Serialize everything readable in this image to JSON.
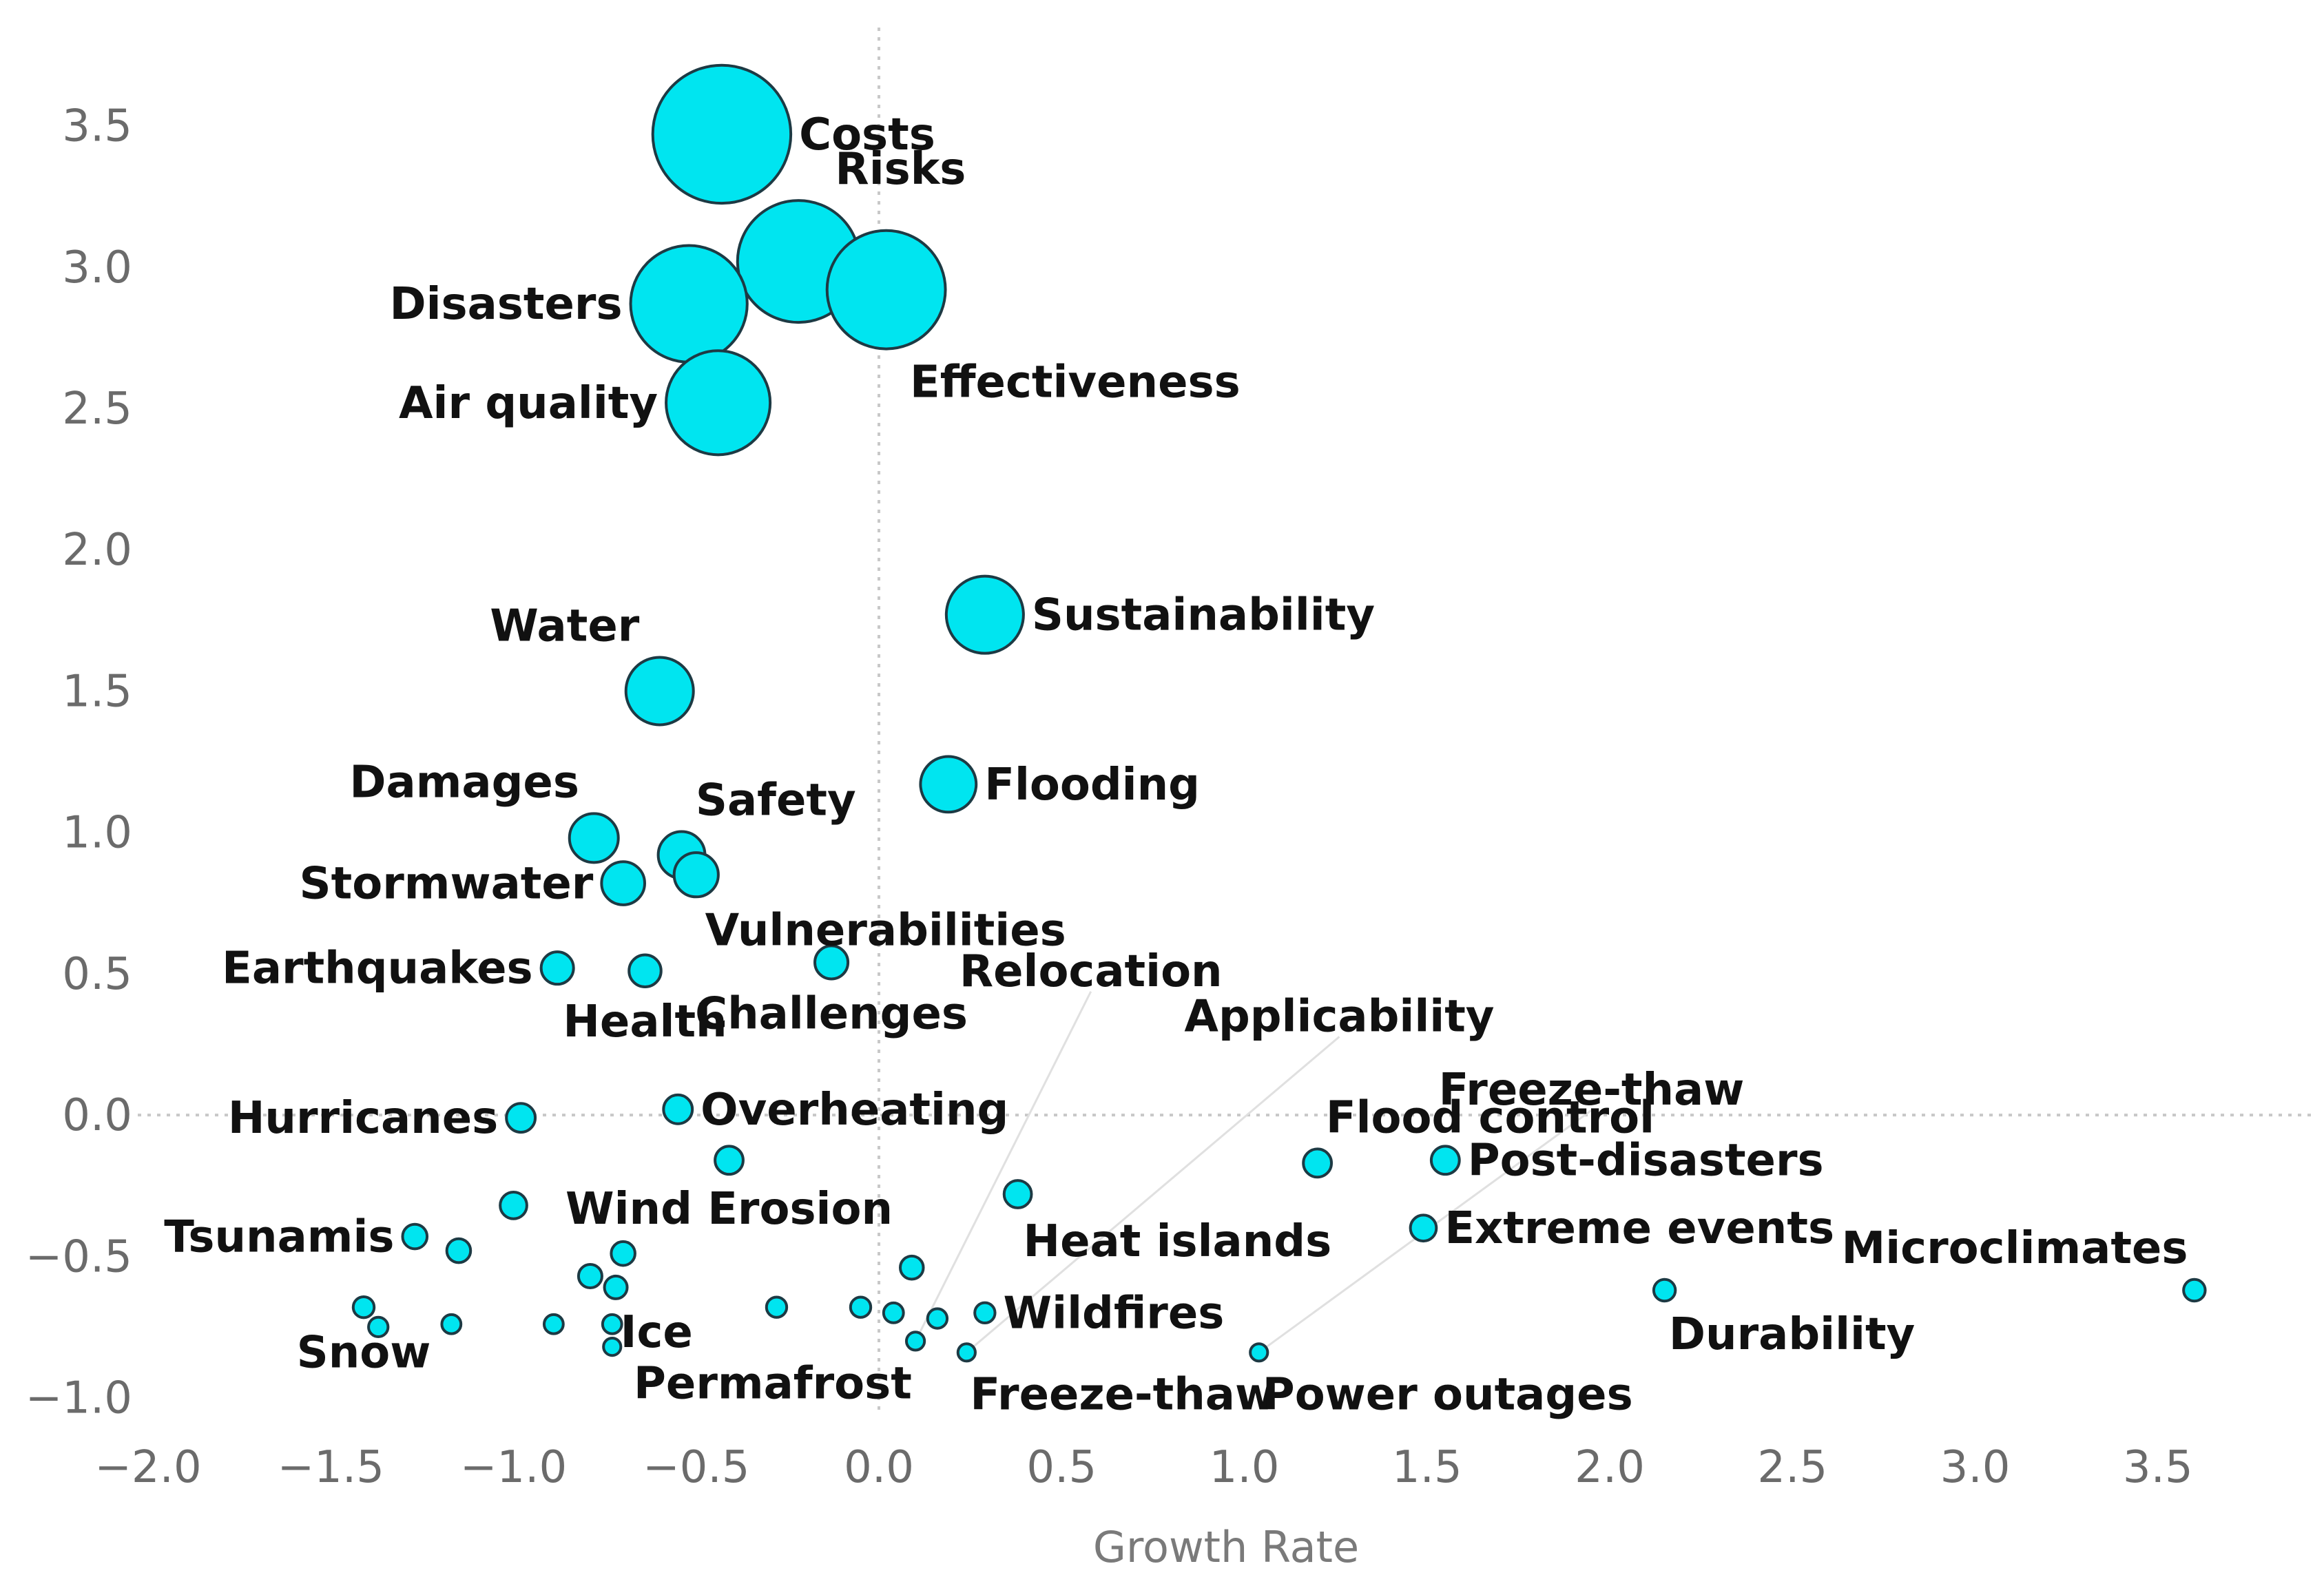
{
  "chart_data": {
    "type": "scatter",
    "title": "",
    "xlabel": "Growth Rate",
    "ylabel": "",
    "xlim": [
      -2.0,
      3.9
    ],
    "ylim": [
      -1.05,
      3.75
    ],
    "x_ticks": [
      -2.0,
      -1.5,
      -1.0,
      -0.5,
      0.0,
      0.5,
      1.0,
      1.5,
      2.0,
      2.5,
      3.0,
      3.5
    ],
    "y_ticks": [
      3.5,
      3.0,
      2.5,
      2.0,
      1.5,
      1.0,
      0.5,
      0.0,
      -0.5,
      -1.0
    ],
    "x_tick_labels": [
      "−2.0",
      "−1.5",
      "−1.0",
      "−0.5",
      "0.0",
      "0.5",
      "1.0",
      "1.5",
      "2.0",
      "2.5",
      "3.0",
      "3.5"
    ],
    "y_tick_labels": [
      "3.5",
      "3.0",
      "2.5",
      "2.0",
      "1.5",
      "1.0",
      "0.5",
      "0.0",
      "−0.5",
      "−1.0"
    ],
    "bubble_color": "#00e5f0",
    "bubble_edge_color": "#1d3a44",
    "grid": false,
    "points": [
      {
        "label": "Costs",
        "x": -0.43,
        "y": 3.47,
        "size": 3.47,
        "label_side": "right"
      },
      {
        "label": "Risks",
        "x": -0.22,
        "y": 3.02,
        "size": 3.02,
        "label_side": "above-right"
      },
      {
        "label": "Effectiveness",
        "x": 0.02,
        "y": 2.92,
        "size": 2.92,
        "label_side": "below-right"
      },
      {
        "label": "Disasters",
        "x": -0.52,
        "y": 2.87,
        "size": 2.87,
        "label_side": "left"
      },
      {
        "label": "Air quality",
        "x": -0.44,
        "y": 2.52,
        "size": 2.52,
        "label_side": "left"
      },
      {
        "label": "Sustainability",
        "x": 0.29,
        "y": 1.77,
        "size": 1.77,
        "label_side": "right"
      },
      {
        "label": "Water",
        "x": -0.6,
        "y": 1.5,
        "size": 1.5,
        "label_side": "above-left"
      },
      {
        "label": "Flooding",
        "x": 0.19,
        "y": 1.17,
        "size": 1.17,
        "label_side": "right"
      },
      {
        "label": "Damages",
        "x": -0.78,
        "y": 0.98,
        "size": 0.98,
        "label_side": "above-left"
      },
      {
        "label": "Safety",
        "x": -0.54,
        "y": 0.92,
        "size": 0.92,
        "label_side": "above-right"
      },
      {
        "label": "Vulnerabilities",
        "x": -0.5,
        "y": 0.85,
        "size": 0.85,
        "label_side": "below-right"
      },
      {
        "label": "Stormwater",
        "x": -0.7,
        "y": 0.82,
        "size": 0.82,
        "label_side": "left"
      },
      {
        "label": "Challenges",
        "x": -0.13,
        "y": 0.54,
        "size": 0.54,
        "label_side": "below"
      },
      {
        "label": "Earthquakes",
        "x": -0.88,
        "y": 0.52,
        "size": 0.52,
        "label_side": "left"
      },
      {
        "label": "Health",
        "x": -0.64,
        "y": 0.51,
        "size": 0.51,
        "label_side": "below"
      },
      {
        "label": "Hurricanes",
        "x": -0.98,
        "y": -0.01,
        "size": 0.42,
        "label_side": "left"
      },
      {
        "label": "Overheating",
        "x": -0.55,
        "y": 0.02,
        "size": 0.42,
        "label_side": "right"
      },
      {
        "label": "Wind Erosion",
        "x": -0.41,
        "y": -0.16,
        "size": 0.4,
        "label_side": "below"
      },
      {
        "label": "Heat islands",
        "x": 0.38,
        "y": -0.28,
        "size": 0.38,
        "label_side": "below-right"
      },
      {
        "label": "Flood control",
        "x": 1.2,
        "y": -0.17,
        "size": 0.4,
        "label_side": "above-right"
      },
      {
        "label": "Post-disasters",
        "x": 1.55,
        "y": -0.16,
        "size": 0.4,
        "label_side": "right"
      },
      {
        "label": "Extreme events",
        "x": 1.49,
        "y": -0.4,
        "size": 0.34,
        "label_side": "right"
      },
      {
        "label": "Microclimates",
        "x": 3.6,
        "y": -0.62,
        "size": 0.22,
        "label_side": "above-left"
      },
      {
        "label": "Durability",
        "x": 2.15,
        "y": -0.62,
        "size": 0.22,
        "label_side": "below-right"
      },
      {
        "label": "Tsunamis",
        "x": -1.27,
        "y": -0.43,
        "size": 0.3,
        "label_side": "left"
      },
      {
        "label": "Ice",
        "x": -0.72,
        "y": -0.61,
        "size": 0.25,
        "label_side": "below-right"
      },
      {
        "label": "Wildfires",
        "x": 0.29,
        "y": -0.7,
        "size": 0.18,
        "label_side": "right"
      },
      {
        "label": "Permafrost",
        "x": 0.1,
        "y": -0.8,
        "size": 0.12,
        "label_side": "below-left"
      },
      {
        "label": "Freeze-thaw",
        "x": 0.24,
        "y": -0.84,
        "size": 0.1,
        "label_side": "below-right"
      },
      {
        "label": "Power outages",
        "x": 1.04,
        "y": -0.84,
        "size": 0.1,
        "label_side": "below-right"
      },
      {
        "label": "Snow",
        "x": -1.41,
        "y": -0.68,
        "size": 0.2,
        "label_side": "below"
      },
      {
        "label": "",
        "x": -1.0,
        "y": -0.32,
        "size": 0.36
      },
      {
        "label": "",
        "x": -1.15,
        "y": -0.48,
        "size": 0.28
      },
      {
        "label": "",
        "x": -0.7,
        "y": -0.49,
        "size": 0.28
      },
      {
        "label": "",
        "x": -0.79,
        "y": -0.57,
        "size": 0.27
      },
      {
        "label": "",
        "x": 0.09,
        "y": -0.54,
        "size": 0.26
      },
      {
        "label": "",
        "x": -1.37,
        "y": -0.75,
        "size": 0.16
      },
      {
        "label": "",
        "x": -1.17,
        "y": -0.74,
        "size": 0.15
      },
      {
        "label": "",
        "x": -0.89,
        "y": -0.74,
        "size": 0.15
      },
      {
        "label": "",
        "x": -0.73,
        "y": -0.74,
        "size": 0.15
      },
      {
        "label": "",
        "x": -0.73,
        "y": -0.82,
        "size": 0.1
      },
      {
        "label": "",
        "x": -0.28,
        "y": -0.68,
        "size": 0.18
      },
      {
        "label": "",
        "x": -0.05,
        "y": -0.68,
        "size": 0.18
      },
      {
        "label": "",
        "x": 0.04,
        "y": -0.7,
        "size": 0.17
      },
      {
        "label": "",
        "x": 0.16,
        "y": -0.72,
        "size": 0.16
      }
    ],
    "additional_labels": [
      {
        "label": "Relocation",
        "x": 0.58,
        "y": 0.51
      },
      {
        "label": "Applicability",
        "x": 1.26,
        "y": 0.35
      },
      {
        "label": "Freeze-thaw",
        "x": 1.95,
        "y": 0.09
      }
    ]
  }
}
